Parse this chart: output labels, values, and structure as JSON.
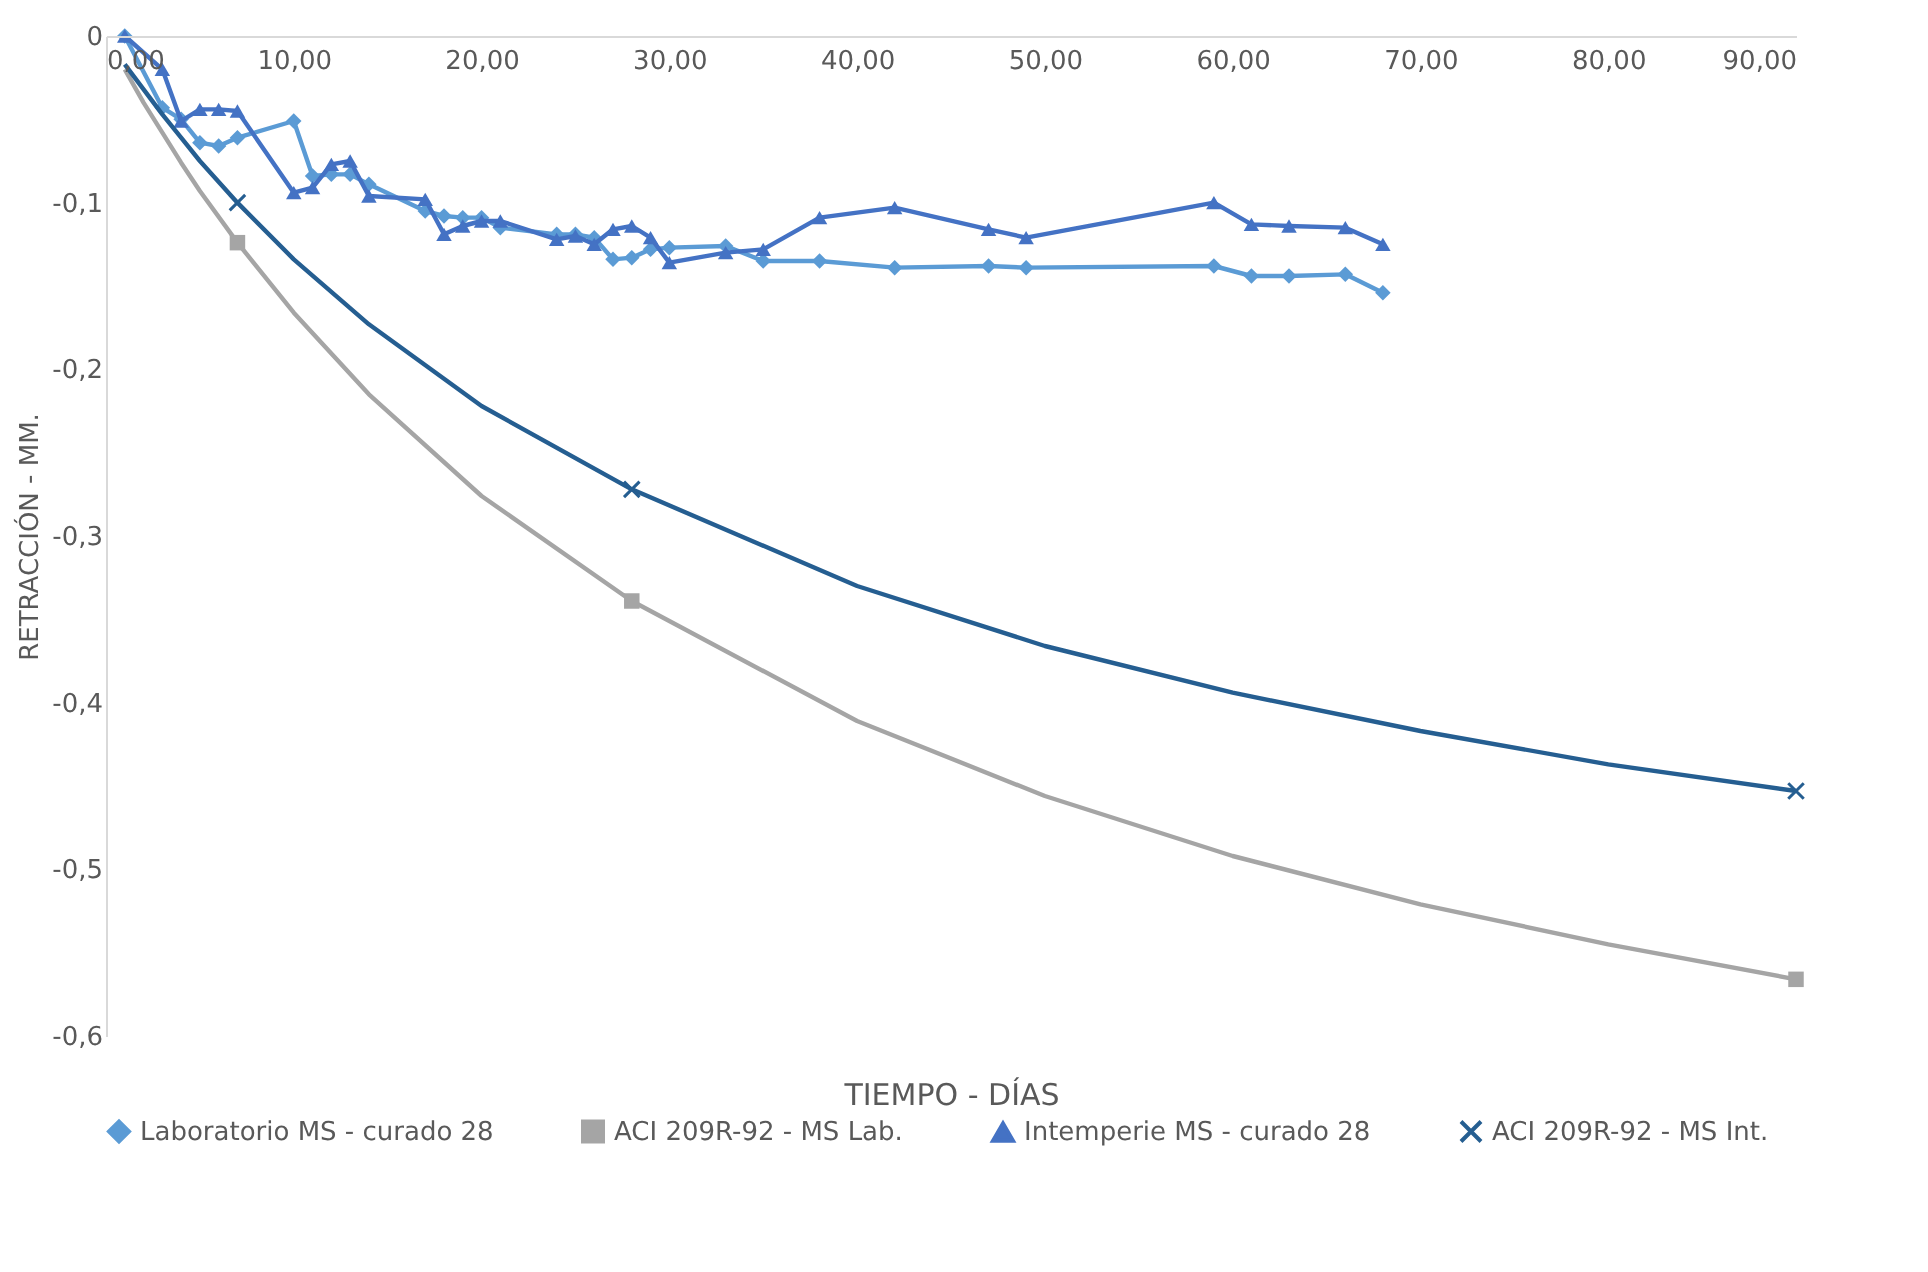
{
  "chart_data": {
    "type": "line",
    "xlabel": "TIEMPO - DÍAS",
    "ylabel": "RETRACCIÓN - MM.",
    "xlim": [
      0,
      90
    ],
    "ylim": [
      -0.6,
      0
    ],
    "xticks": [
      {
        "value": 0,
        "label": "0,00"
      },
      {
        "value": 10,
        "label": "10,00"
      },
      {
        "value": 20,
        "label": "20,00"
      },
      {
        "value": 30,
        "label": "30,00"
      },
      {
        "value": 40,
        "label": "40,00"
      },
      {
        "value": 50,
        "label": "50,00"
      },
      {
        "value": 60,
        "label": "60,00"
      },
      {
        "value": 70,
        "label": "70,00"
      },
      {
        "value": 80,
        "label": "80,00"
      },
      {
        "value": 90,
        "label": "90,00"
      }
    ],
    "yticks": [
      0,
      {
        "value": -0.1,
        "label": "-0,1"
      },
      {
        "value": -0.2,
        "label": "-0,2"
      },
      {
        "value": -0.3,
        "label": "-0,3"
      },
      {
        "value": -0.4,
        "label": "-0,4"
      },
      {
        "value": -0.5,
        "label": "-0,5"
      },
      {
        "value": -0.6,
        "label": "-0,6"
      }
    ],
    "legend": "bottom",
    "line_style": "solid",
    "series": [
      {
        "name": "Laboratorio MS - curado 28",
        "marker": "diamond",
        "color": "#5b9bd5",
        "x": [
          1,
          3,
          4,
          5,
          6,
          7,
          10,
          11,
          12,
          13,
          14,
          17,
          18,
          19,
          20,
          21,
          24,
          25,
          26,
          27,
          28,
          29,
          30,
          33,
          35,
          38,
          42,
          47,
          49,
          59,
          61,
          63,
          66,
          68
        ],
        "values": [
          0,
          -0.043,
          -0.05,
          -0.064,
          -0.066,
          -0.061,
          -0.051,
          -0.084,
          -0.083,
          -0.083,
          -0.089,
          -0.105,
          -0.108,
          -0.109,
          -0.109,
          -0.115,
          -0.119,
          -0.119,
          -0.121,
          -0.134,
          -0.133,
          -0.128,
          -0.127,
          -0.126,
          -0.135,
          -0.135,
          -0.139,
          -0.138,
          -0.139,
          -0.138,
          -0.144,
          -0.144,
          -0.143,
          -0.154
        ]
      },
      {
        "marker": "none",
        "color": "#a5a5a5",
        "x": [
          1,
          2,
          3,
          4,
          5,
          7,
          10,
          14,
          20,
          28,
          40,
          50,
          60,
          70,
          80,
          90
        ],
        "values": [
          -0.02,
          -0.04,
          -0.058,
          -0.076,
          -0.093,
          -0.124,
          -0.166,
          -0.215,
          -0.276,
          -0.339,
          -0.411,
          -0.456,
          -0.492,
          -0.521,
          -0.545,
          -0.566
        ]
      },
      {
        "name": "ACI 209R-92 - MS Lab.",
        "type": "scatter",
        "marker": "square",
        "color": "#a5a5a5",
        "x": [
          7,
          28,
          90
        ],
        "values": [
          -0.124,
          -0.339,
          -0.566
        ]
      },
      {
        "name": "Intemperie MS - curado 28",
        "marker": "triangle",
        "color": "#4472c4",
        "x": [
          1,
          3,
          4,
          5,
          6,
          7,
          10,
          11,
          12,
          13,
          14,
          17,
          18,
          19,
          20,
          21,
          24,
          25,
          26,
          27,
          28,
          29,
          30,
          33,
          35,
          38,
          42,
          47,
          49,
          59,
          61,
          63,
          66,
          68
        ],
        "values": [
          0,
          -0.02,
          -0.051,
          -0.044,
          -0.044,
          -0.045,
          -0.094,
          -0.091,
          -0.077,
          -0.075,
          -0.096,
          -0.098,
          -0.119,
          -0.114,
          -0.111,
          -0.111,
          -0.122,
          -0.12,
          -0.125,
          -0.116,
          -0.114,
          -0.121,
          -0.136,
          -0.13,
          -0.128,
          -0.109,
          -0.103,
          -0.116,
          -0.121,
          -0.1,
          -0.113,
          -0.114,
          -0.115,
          -0.125
        ]
      },
      {
        "marker": "none",
        "color": "#255e91",
        "x": [
          1,
          2,
          3,
          4,
          5,
          7,
          10,
          14,
          20,
          28,
          40,
          50,
          60,
          70,
          80,
          90
        ],
        "values": [
          -0.017,
          -0.032,
          -0.047,
          -0.061,
          -0.075,
          -0.1,
          -0.134,
          -0.173,
          -0.222,
          -0.272,
          -0.33,
          -0.366,
          -0.394,
          -0.417,
          -0.437,
          -0.453
        ]
      },
      {
        "name": "ACI 209R-92 - MS Int.",
        "type": "scatter",
        "marker": "cross",
        "color": "#255e91",
        "x": [
          7,
          28,
          90
        ],
        "values": [
          -0.1,
          -0.272,
          -0.453
        ]
      }
    ]
  }
}
